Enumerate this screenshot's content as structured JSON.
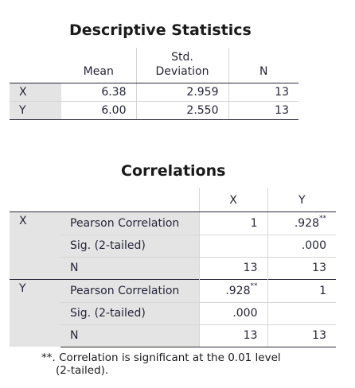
{
  "descriptive": {
    "title": "Descriptive Statistics",
    "headers": {
      "mean": "Mean",
      "std_line1": "Std.",
      "std_line2": "Deviation",
      "n": "N"
    },
    "rows": [
      {
        "label": "X",
        "mean": "6.38",
        "std": "2.959",
        "n": "13"
      },
      {
        "label": "Y",
        "mean": "6.00",
        "std": "2.550",
        "n": "13"
      }
    ]
  },
  "correlations": {
    "title": "Correlations",
    "col_headers": [
      "X",
      "Y"
    ],
    "groups": [
      {
        "label": "X",
        "rows": [
          {
            "stat": "Pearson Correlation",
            "x": "1",
            "x_sup": "",
            "y": ".928",
            "y_sup": "**"
          },
          {
            "stat": "Sig. (2-tailed)",
            "x": "",
            "x_sup": "",
            "y": ".000",
            "y_sup": ""
          },
          {
            "stat": "N",
            "x": "13",
            "x_sup": "",
            "y": "13",
            "y_sup": ""
          }
        ]
      },
      {
        "label": "Y",
        "rows": [
          {
            "stat": "Pearson Correlation",
            "x": ".928",
            "x_sup": "**",
            "y": "1",
            "y_sup": ""
          },
          {
            "stat": "Sig. (2-tailed)",
            "x": ".000",
            "x_sup": "",
            "y": "",
            "y_sup": ""
          },
          {
            "stat": "N",
            "x": "13",
            "x_sup": "",
            "y": "13",
            "y_sup": ""
          }
        ]
      }
    ],
    "footnote_line1": "**. Correlation is significant at the 0.01 level",
    "footnote_line2": "(2-tailed)."
  }
}
